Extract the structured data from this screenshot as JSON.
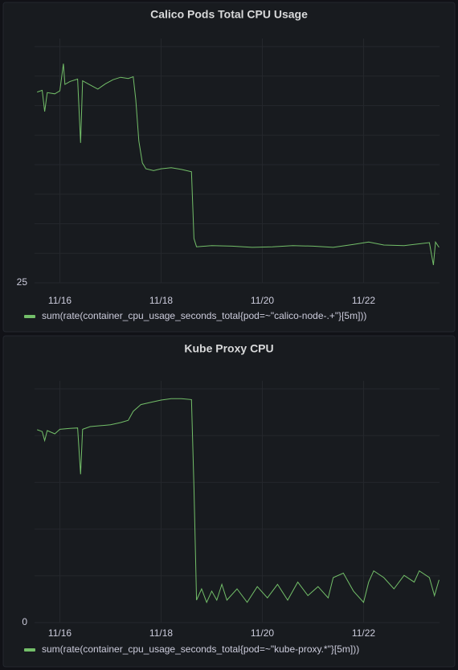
{
  "chart_data": [
    {
      "type": "line",
      "title": "Calico Pods Total CPU Usage",
      "x": [
        15.55,
        15.65,
        15.7,
        15.75,
        15.9,
        16.0,
        16.07,
        16.1,
        16.2,
        16.35,
        16.41,
        16.45,
        16.6,
        16.75,
        16.9,
        17.05,
        17.2,
        17.35,
        17.45,
        17.5,
        17.56,
        17.63,
        17.7,
        17.85,
        18.0,
        18.2,
        18.4,
        18.6,
        18.65,
        18.7,
        19.0,
        19.4,
        19.8,
        20.2,
        20.6,
        21.0,
        21.4,
        21.8,
        22.1,
        22.4,
        22.8,
        23.1,
        23.3,
        23.38,
        23.42,
        23.49
      ],
      "series": [
        {
          "name": "sum(rate(container_cpu_usage_seconds_total{pod=~\"calico-node-.+\"}[5m]))",
          "color": "#73bf69",
          "values": [
            57.3,
            57.6,
            54.0,
            57.2,
            57.0,
            57.5,
            62.1,
            58.6,
            59.1,
            59.5,
            48.7,
            59.2,
            58.5,
            57.8,
            58.7,
            59.4,
            59.8,
            59.6,
            59.9,
            56.0,
            49.0,
            45.3,
            44.3,
            44.0,
            44.3,
            44.5,
            44.2,
            43.8,
            32.5,
            31.1,
            31.3,
            31.2,
            31.0,
            31.1,
            31.3,
            31.2,
            31.0,
            31.5,
            31.9,
            31.4,
            31.3,
            31.6,
            31.8,
            28.0,
            31.9,
            31.0
          ]
        }
      ],
      "xlim": [
        15.5,
        23.5
      ],
      "xticks": [
        {
          "value": 16,
          "label": "11/16"
        },
        {
          "value": 18,
          "label": "11/18"
        },
        {
          "value": 20,
          "label": "11/20"
        },
        {
          "value": 22,
          "label": "11/22"
        }
      ],
      "ylim": [
        25,
        65
      ],
      "yticks": [
        25
      ],
      "grid": true
    },
    {
      "type": "line",
      "title": "Kube Proxy CPU",
      "x": [
        15.55,
        15.65,
        15.7,
        15.75,
        15.9,
        16.0,
        16.2,
        16.35,
        16.41,
        16.45,
        16.6,
        16.8,
        17.0,
        17.2,
        17.35,
        17.45,
        17.6,
        17.8,
        18.0,
        18.2,
        18.4,
        18.6,
        18.65,
        18.7,
        18.8,
        18.9,
        19.0,
        19.1,
        19.2,
        19.3,
        19.5,
        19.7,
        19.9,
        20.1,
        20.3,
        20.5,
        20.7,
        20.9,
        21.1,
        21.3,
        21.4,
        21.6,
        21.8,
        22.0,
        22.1,
        22.2,
        22.4,
        22.6,
        22.8,
        23.0,
        23.1,
        23.3,
        23.4,
        23.49
      ],
      "series": [
        {
          "name": "sum(rate(container_cpu_usage_seconds_total{pod=~\"kube-proxy.*\"}[5m]))",
          "color": "#73bf69",
          "values": [
            42.9,
            42.5,
            40.5,
            42.7,
            42.0,
            43.0,
            43.2,
            43.3,
            33.0,
            43.0,
            43.6,
            43.8,
            44.0,
            44.5,
            45.0,
            47.0,
            48.5,
            49.0,
            49.5,
            49.8,
            49.8,
            49.6,
            30.0,
            5.0,
            7.5,
            4.5,
            7.0,
            5.0,
            8.5,
            5.0,
            7.5,
            4.5,
            8.0,
            5.5,
            8.5,
            5.0,
            9.0,
            6.0,
            8.0,
            5.5,
            10.0,
            11.0,
            7.0,
            4.5,
            9.0,
            11.5,
            10.0,
            7.5,
            10.5,
            9.0,
            11.5,
            10.0,
            6.0,
            9.5
          ]
        }
      ],
      "xlim": [
        15.5,
        23.5
      ],
      "xticks": [
        {
          "value": 16,
          "label": "11/16"
        },
        {
          "value": 18,
          "label": "11/18"
        },
        {
          "value": 20,
          "label": "11/20"
        },
        {
          "value": 22,
          "label": "11/22"
        }
      ],
      "ylim": [
        0,
        52
      ],
      "yticks": [
        0
      ],
      "grid": true
    }
  ]
}
